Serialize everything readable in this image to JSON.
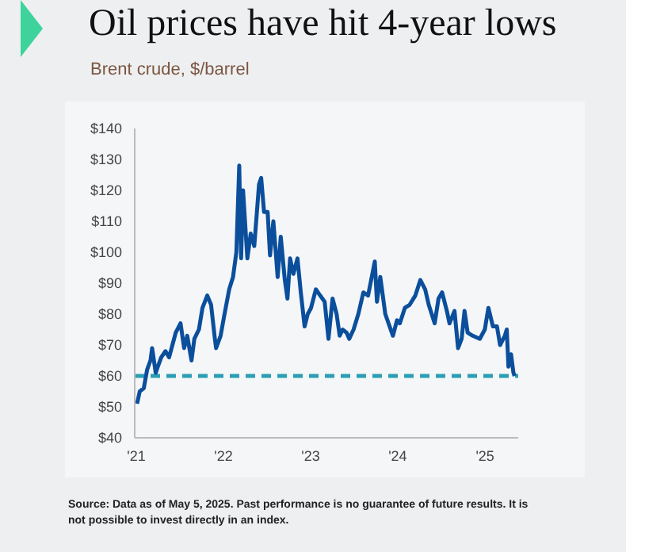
{
  "chart_data": {
    "type": "line",
    "title": "Oil prices have hit 4-year lows",
    "subtitle": "Brent crude, $/barrel",
    "annotations": [
      "Source: Data as of May 5, 2025. Past performance is no guarantee of future results. It is not possible to invest directly in an index."
    ],
    "x": [
      "2021-01-04",
      "2021-01-15",
      "2021-02-01",
      "2021-02-15",
      "2021-03-01",
      "2021-03-08",
      "2021-03-23",
      "2021-04-01",
      "2021-04-15",
      "2021-05-03",
      "2021-05-18",
      "2021-06-01",
      "2021-06-15",
      "2021-07-05",
      "2021-07-20",
      "2021-08-02",
      "2021-08-20",
      "2021-09-01",
      "2021-09-20",
      "2021-10-05",
      "2021-10-25",
      "2021-11-10",
      "2021-11-26",
      "2021-12-01",
      "2021-12-20",
      "2022-01-03",
      "2022-01-25",
      "2022-02-10",
      "2022-02-24",
      "2022-03-08",
      "2022-03-16",
      "2022-03-24",
      "2022-04-11",
      "2022-04-25",
      "2022-05-10",
      "2022-05-30",
      "2022-06-08",
      "2022-06-20",
      "2022-07-05",
      "2022-07-15",
      "2022-07-29",
      "2022-08-16",
      "2022-08-29",
      "2022-09-15",
      "2022-09-26",
      "2022-10-07",
      "2022-10-21",
      "2022-11-07",
      "2022-11-21",
      "2022-12-07",
      "2022-12-20",
      "2023-01-03",
      "2023-01-23",
      "2023-02-10",
      "2023-03-01",
      "2023-03-17",
      "2023-04-03",
      "2023-04-20",
      "2023-05-03",
      "2023-05-15",
      "2023-06-01",
      "2023-06-12",
      "2023-06-30",
      "2023-07-20",
      "2023-08-10",
      "2023-08-30",
      "2023-09-27",
      "2023-10-06",
      "2023-10-20",
      "2023-11-10",
      "2023-12-12",
      "2023-12-29",
      "2024-01-10",
      "2024-01-31",
      "2024-02-20",
      "2024-03-15",
      "2024-04-05",
      "2024-04-25",
      "2024-05-10",
      "2024-06-04",
      "2024-06-20",
      "2024-07-05",
      "2024-07-25",
      "2024-08-05",
      "2024-08-26",
      "2024-09-10",
      "2024-09-25",
      "2024-10-07",
      "2024-10-20",
      "2024-11-10",
      "2024-12-10",
      "2024-12-31",
      "2025-01-15",
      "2025-02-03",
      "2025-02-20",
      "2025-03-05",
      "2025-03-25",
      "2025-04-02",
      "2025-04-09",
      "2025-04-20",
      "2025-04-30",
      "2025-05-05"
    ],
    "series": [
      {
        "color": "#0b4f9c",
        "values": [
          51,
          55,
          56,
          62,
          65,
          69,
          61,
          63,
          66,
          68,
          66,
          70,
          74,
          77,
          69,
          73,
          65,
          72,
          75,
          82,
          86,
          83,
          72,
          69,
          73,
          79,
          88,
          92,
          100,
          128,
          98,
          120,
          98,
          106,
          102,
          122,
          124,
          113,
          113,
          99,
          110,
          92,
          105,
          91,
          85,
          98,
          93,
          98,
          87,
          76,
          80,
          82,
          88,
          86,
          84,
          72,
          85,
          80,
          73,
          75,
          74,
          72,
          75,
          80,
          87,
          86,
          97,
          84,
          92,
          80,
          73,
          78,
          77,
          82,
          83,
          86,
          91,
          88,
          83,
          77,
          85,
          87,
          81,
          77,
          81,
          69,
          72,
          81,
          74,
          73,
          72,
          75,
          82,
          76,
          76,
          70,
          73,
          75,
          63,
          67,
          61,
          60
        ]
      }
    ],
    "xlim": [
      "2020-12-25",
      "2025-05-20"
    ],
    "xticks": [
      {
        "value": "2021-01-01",
        "label": "'21"
      },
      {
        "value": "2022-01-01",
        "label": "'22"
      },
      {
        "value": "2023-01-01",
        "label": "'23"
      },
      {
        "value": "2024-01-01",
        "label": "'24"
      },
      {
        "value": "2025-01-01",
        "label": "'25"
      }
    ],
    "ylim": [
      40,
      140
    ],
    "yticks": [
      {
        "value": 40,
        "label": "$40"
      },
      {
        "value": 50,
        "label": "$50"
      },
      {
        "value": 60,
        "label": "$60"
      },
      {
        "value": 70,
        "label": "$70"
      },
      {
        "value": 80,
        "label": "$80"
      },
      {
        "value": 90,
        "label": "$90"
      },
      {
        "value": 100,
        "label": "$100"
      },
      {
        "value": 110,
        "label": "$110"
      },
      {
        "value": 120,
        "label": "$120"
      },
      {
        "value": 130,
        "label": "$130"
      },
      {
        "value": 140,
        "label": "$140"
      }
    ],
    "ref_lines": [
      {
        "axis": "y",
        "value": 60,
        "color": "#2a9fb3",
        "line_style": "dashed"
      }
    ],
    "marker": "none",
    "line_style": "solid"
  }
}
